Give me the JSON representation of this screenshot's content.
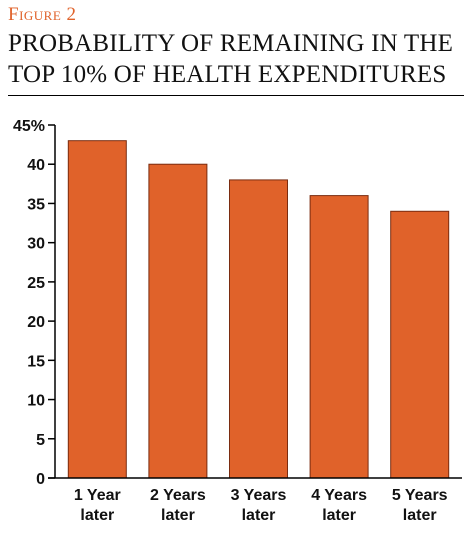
{
  "figure_label": "Figure 2",
  "chart_data": {
    "type": "bar",
    "title": "PROBABILITY OF REMAINING IN THE TOP 10% OF HEALTH EXPENDITURES",
    "categories": [
      [
        "1 Year",
        "later"
      ],
      [
        "2 Years",
        "later"
      ],
      [
        "3 Years",
        "later"
      ],
      [
        "4 Years",
        "later"
      ],
      [
        "5 Years",
        "later"
      ]
    ],
    "values": [
      43,
      40,
      38,
      36,
      34
    ],
    "ylim": [
      0,
      45
    ],
    "yticks": [
      0,
      5,
      10,
      15,
      20,
      25,
      30,
      35,
      40,
      45
    ],
    "ytick_labels": [
      "0",
      "5",
      "10",
      "15",
      "20",
      "25",
      "30",
      "35",
      "40",
      "45%"
    ],
    "grid": false,
    "colors": {
      "bar": "#e0622a",
      "bar_edge": "#7a2c10",
      "axis": "#000000"
    }
  }
}
